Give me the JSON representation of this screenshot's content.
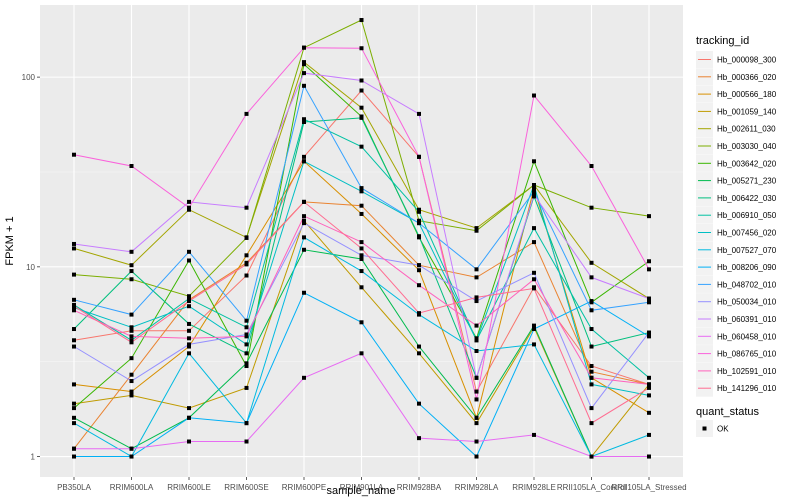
{
  "chart_data": {
    "type": "line",
    "xlabel": "sample_name",
    "ylabel": "FPKM + 1",
    "yscale": "log10",
    "ylim": [
      0.78,
      240
    ],
    "yticks": [
      1,
      10,
      100
    ],
    "ytick_labels": [
      "1",
      "10",
      "100"
    ],
    "grid": true,
    "legend_position": "right",
    "categories": [
      "PB350LA",
      "RRIM600LA",
      "RRIM600LE",
      "RRIM600SE",
      "RRIM600PE",
      "RRIM901LA",
      "RRIM928BA",
      "RRIM928LA",
      "RRIM928LE",
      "RRII105LA_Control",
      "RRII105LA_Stressed"
    ],
    "legend": {
      "title": "tracking_id",
      "shape_title": "quant_status",
      "shape_entries": [
        "OK"
      ]
    },
    "series": [
      {
        "name": "Hb_000098_300",
        "color": "#F8766D",
        "values": [
          4.1,
          4.6,
          4.6,
          9.0,
          38,
          85,
          38,
          2.2,
          7.8,
          3.0,
          2.4
        ]
      },
      {
        "name": "Hb_000366_020",
        "color": "#EA8331",
        "values": [
          1.1,
          2.7,
          6.7,
          10.5,
          22,
          21,
          10.2,
          8.8,
          13.5,
          2.8,
          2.4
        ]
      },
      {
        "name": "Hb_000566_180",
        "color": "#D89000",
        "values": [
          2.4,
          2.2,
          3.8,
          11.5,
          36,
          19,
          9.6,
          1.6,
          26,
          2.6,
          1.7
        ]
      },
      {
        "name": "Hb_001059_140",
        "color": "#C09B00",
        "values": [
          1.9,
          2.1,
          1.8,
          2.3,
          17.5,
          7.8,
          3.5,
          1.5,
          4.8,
          1.0,
          2.4
        ]
      },
      {
        "name": "Hb_002611_030",
        "color": "#A3A500",
        "values": [
          12.5,
          10.2,
          20,
          14.3,
          120,
          69,
          20,
          16,
          27,
          10.5,
          6.8
        ]
      },
      {
        "name": "Hb_003030_040",
        "color": "#7CAE00",
        "values": [
          9.1,
          8.6,
          7.0,
          14.2,
          143,
          200,
          17.5,
          15.5,
          27,
          20.5,
          18.5
        ]
      },
      {
        "name": "Hb_003642_020",
        "color": "#39B600",
        "values": [
          1.8,
          3.3,
          10.8,
          3.0,
          117,
          62,
          14.3,
          4.2,
          36,
          6.5,
          10.7
        ]
      },
      {
        "name": "Hb_005271_230",
        "color": "#00BB4E",
        "values": [
          1.6,
          1.1,
          1.6,
          3.1,
          12.3,
          11.0,
          3.8,
          1.6,
          4.9,
          1.0,
          1.0
        ]
      },
      {
        "name": "Hb_006422_030",
        "color": "#00BF7D",
        "values": [
          4.7,
          9.5,
          5.0,
          3.5,
          58,
          61,
          14.5,
          2.6,
          23.5,
          3.8,
          4.5
        ]
      },
      {
        "name": "Hb_006910_050",
        "color": "#00C1A3",
        "values": [
          6.3,
          4.1,
          6.8,
          4.8,
          60,
          43,
          19.5,
          4.1,
          16,
          4.7,
          2.6
        ]
      },
      {
        "name": "Hb_007456_020",
        "color": "#00BFC4",
        "values": [
          6.1,
          4.8,
          6.2,
          3.9,
          36,
          25,
          17,
          4.1,
          27,
          2.4,
          2.1
        ]
      },
      {
        "name": "Hb_007527_070",
        "color": "#00BAE0",
        "values": [
          1.5,
          1.0,
          3.5,
          1.5,
          14.3,
          9.5,
          5.6,
          3.6,
          3.9,
          1.0,
          1.3
        ]
      },
      {
        "name": "Hb_008206_090",
        "color": "#00B0F6",
        "values": [
          1.0,
          1.0,
          1.6,
          1.5,
          7.3,
          5.1,
          1.9,
          1.0,
          4.7,
          6.6,
          4.3
        ]
      },
      {
        "name": "Hb_048702_010",
        "color": "#35A2FF",
        "values": [
          6.7,
          5.6,
          12,
          5.2,
          90,
          26,
          17,
          9.7,
          25,
          5.9,
          6.5
        ]
      },
      {
        "name": "Hb_050034_010",
        "color": "#9590FF",
        "values": [
          3.8,
          2.5,
          3.9,
          4.4,
          17,
          11.5,
          10.2,
          6.6,
          9.3,
          1.8,
          4.5
        ]
      },
      {
        "name": "Hb_060391_010",
        "color": "#C77CFF",
        "values": [
          13.2,
          12.0,
          22,
          20.5,
          105,
          96,
          64,
          2.6,
          24,
          8.8,
          6.8
        ]
      },
      {
        "name": "Hb_060458_010",
        "color": "#E76BF3",
        "values": [
          1.1,
          1.1,
          1.2,
          1.2,
          2.6,
          3.5,
          1.25,
          1.2,
          1.3,
          1.0,
          1.0
        ]
      },
      {
        "name": "Hb_086765_010",
        "color": "#FA62DB",
        "values": [
          39,
          34,
          20.5,
          64,
          143,
          142,
          38,
          2.0,
          80,
          34,
          9.7
        ]
      },
      {
        "name": "Hb_102591_010",
        "color": "#FF62BC",
        "values": [
          5.9,
          4.3,
          4.2,
          4.3,
          18.5,
          13.5,
          8.0,
          4.9,
          8.6,
          2.6,
          2.4
        ]
      },
      {
        "name": "Hb_141296_010",
        "color": "#FF6C91",
        "values": [
          6.2,
          4.0,
          6.6,
          10.3,
          22,
          12.5,
          5.7,
          6.9,
          7.7,
          1.5,
          2.3
        ]
      }
    ]
  }
}
